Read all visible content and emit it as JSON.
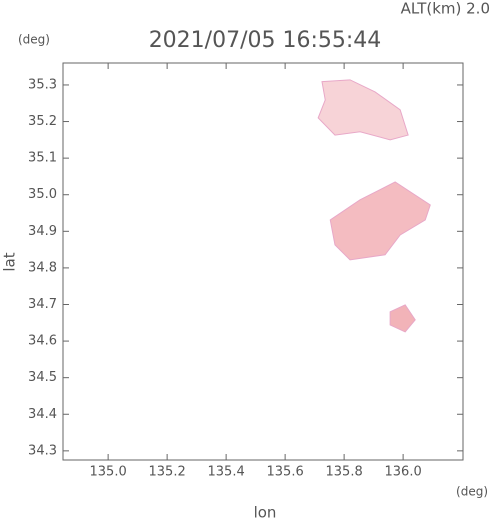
{
  "chart_data": {
    "type": "area-map",
    "title": "2021/07/05 16:55:44",
    "altitude_label": "ALT(km) 2.0",
    "y_unit": "(deg)",
    "x_unit": "(deg)",
    "xlabel": "lon",
    "ylabel": "lat",
    "xlim": [
      134.847,
      136.203
    ],
    "ylim": [
      34.275,
      35.36
    ],
    "xticks": [
      {
        "value": 135,
        "label": "135.0"
      },
      135.2,
      135.4,
      135.6,
      135.8,
      {
        "value": 136,
        "label": "136.0"
      }
    ],
    "yticks": [
      35.3,
      35.2,
      35.1,
      {
        "value": 35,
        "label": "35.0"
      },
      34.9,
      34.8,
      34.7,
      34.6,
      34.5,
      34.4,
      34.3
    ],
    "regions": [
      {
        "color": "#f7d3d7",
        "lon": [
          135.725,
          135.82,
          135.905,
          135.99,
          136.017,
          135.956,
          135.854,
          135.769,
          135.712,
          135.736
        ],
        "lat": [
          35.309,
          35.314,
          35.281,
          35.232,
          35.163,
          35.15,
          35.172,
          35.163,
          35.21,
          35.259
        ]
      },
      {
        "color": "#f4bcc1",
        "lon": [
          135.753,
          135.854,
          135.973,
          136.092,
          136.075,
          135.99,
          135.939,
          135.82,
          135.769
        ],
        "lat": [
          34.931,
          34.986,
          35.035,
          34.972,
          34.931,
          34.89,
          34.836,
          34.822,
          34.863
        ]
      },
      {
        "color": "#f2b3b8",
        "lon": [
          135.956,
          136.007,
          136.041,
          136.007,
          135.956
        ],
        "lat": [
          34.68,
          34.699,
          34.658,
          34.625,
          34.644
        ]
      }
    ]
  }
}
